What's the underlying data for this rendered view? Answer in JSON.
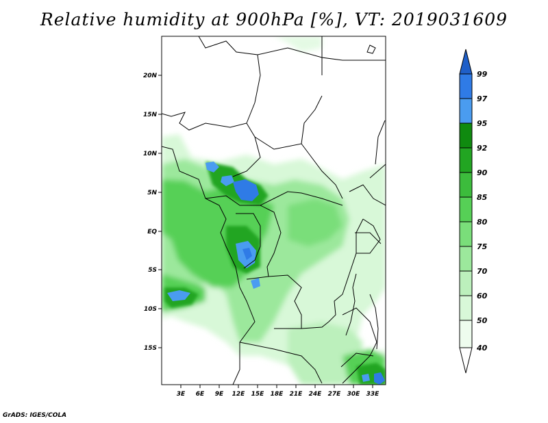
{
  "title": "Relative humidity at 900hPa [%], VT: 2019031609",
  "credit": "GrADS: IGES/COLA",
  "map": {
    "lat_ticks": [
      "20N",
      "15N",
      "10N",
      "5N",
      "EQ",
      "5S",
      "10S",
      "15S"
    ],
    "lon_ticks": [
      "3E",
      "6E",
      "9E",
      "12E",
      "15E",
      "18E",
      "21E",
      "24E",
      "27E",
      "30E",
      "33E"
    ]
  },
  "colorbar": {
    "levels": [
      "99",
      "97",
      "95",
      "92",
      "90",
      "85",
      "80",
      "75",
      "70",
      "60",
      "50",
      "40"
    ],
    "colors": [
      "#1f5fc8",
      "#2f7be6",
      "#4a9cf0",
      "#0f8a0f",
      "#22a522",
      "#3cbc3c",
      "#56d056",
      "#7ade7a",
      "#9ce89c",
      "#bcf0bc",
      "#d8f8d8",
      "#eefcee",
      "#ffffff"
    ]
  }
}
